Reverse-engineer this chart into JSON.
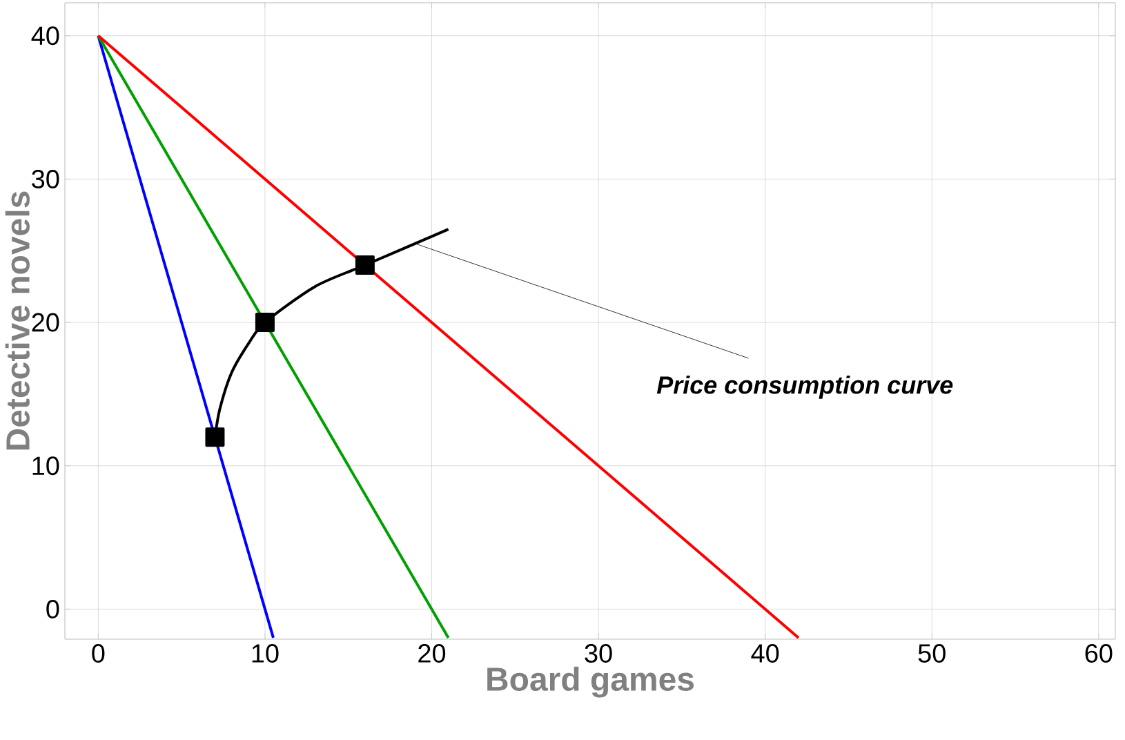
{
  "chart_data": {
    "type": "line",
    "xlabel": "Board games",
    "ylabel": "Detective novels",
    "xlim": [
      -2,
      61
    ],
    "ylim": [
      -2.1,
      42.3
    ],
    "xticks": [
      0,
      10,
      20,
      30,
      40,
      50,
      60
    ],
    "yticks": [
      0,
      10,
      20,
      30,
      40
    ],
    "grid": true,
    "series": [
      {
        "color": "#0000ff",
        "x": [
          0,
          10.5
        ],
        "values": [
          40,
          -2
        ],
        "marker": "none"
      },
      {
        "color": "#00a000",
        "x": [
          0,
          21
        ],
        "values": [
          40,
          -2
        ],
        "marker": "none"
      },
      {
        "color": "#ff0000",
        "x": [
          0,
          42
        ],
        "values": [
          40,
          -2
        ],
        "marker": "none"
      },
      {
        "color": "#000000",
        "x": [
          7,
          7.3,
          8,
          9,
          10,
          13,
          16,
          21
        ],
        "values": [
          12,
          14,
          16.5,
          18.5,
          20,
          22.5,
          24,
          26.5
        ],
        "marker": "none"
      },
      {
        "type": "scatter",
        "color": "#000000",
        "x": [
          7,
          10,
          16
        ],
        "values": [
          12,
          20,
          24
        ],
        "marker": "square"
      }
    ],
    "annotations": [
      {
        "text": "Price consumption curve",
        "x": 19,
        "y": 25.5
      }
    ]
  }
}
